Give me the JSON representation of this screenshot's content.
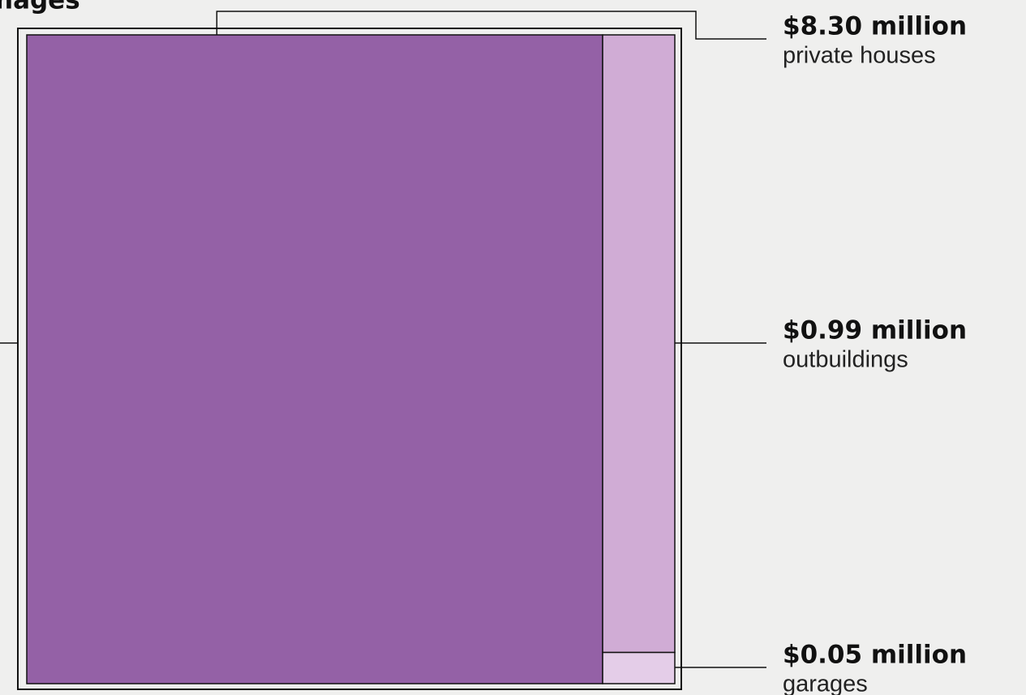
{
  "chart_data": {
    "type": "treemap",
    "title": "nages",
    "categories": [
      "private houses",
      "outbuildings",
      "garages"
    ],
    "values": [
      8.3,
      0.99,
      0.05
    ],
    "value_labels": [
      "$8.30 million",
      "$0.99 million",
      "$0.05 million"
    ],
    "colors": [
      "#9461a6",
      "#d0acd5",
      "#e4cde8"
    ]
  }
}
